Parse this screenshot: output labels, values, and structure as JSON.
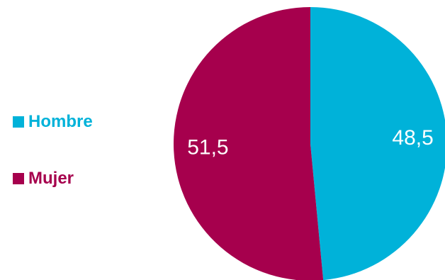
{
  "chart_data": {
    "type": "pie",
    "categories": [
      "Hombre",
      "Mujer"
    ],
    "values": [
      48.5,
      51.5
    ],
    "data_labels": [
      "48,5",
      "51,5"
    ],
    "colors": [
      "#00b2d9",
      "#a6004d"
    ],
    "legend_position": "left",
    "start_angle_deg": 0,
    "direction": "clockwise"
  }
}
